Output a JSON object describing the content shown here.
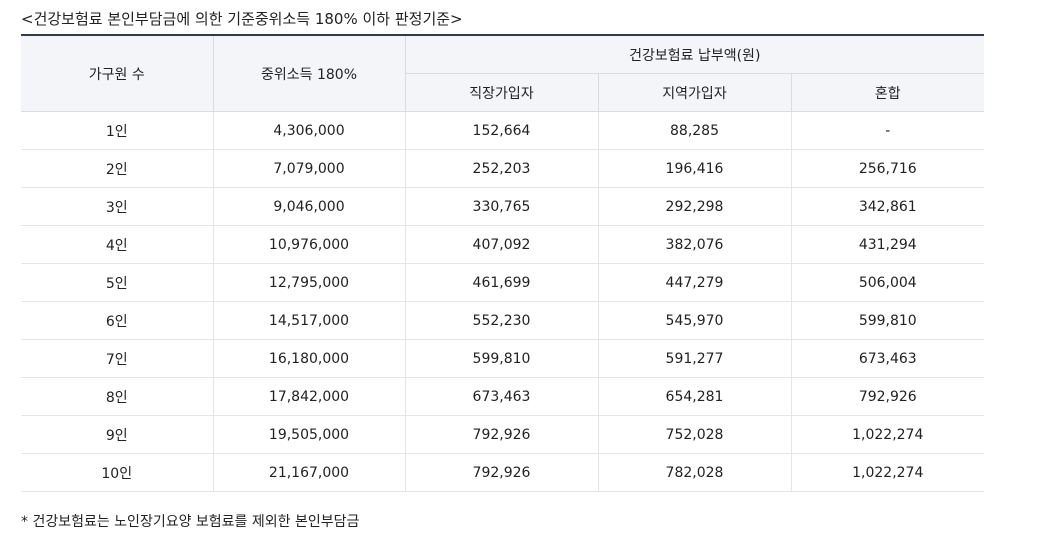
{
  "caption": "<건강보험료 본인부담금에 의한 기준중위소득 180% 이하 판정기준>",
  "table": {
    "header": {
      "household": "가구원 수",
      "median_income": "중위소득 180%",
      "premium_group": "건강보험료 납부액(원)",
      "employee": "직장가입자",
      "regional": "지역가입자",
      "mixed": "혼합"
    },
    "rows": [
      {
        "household": "1인",
        "income": "4,306,000",
        "employee": "152,664",
        "regional": "88,285",
        "mixed": "-"
      },
      {
        "household": "2인",
        "income": "7,079,000",
        "employee": "252,203",
        "regional": "196,416",
        "mixed": "256,716"
      },
      {
        "household": "3인",
        "income": "9,046,000",
        "employee": "330,765",
        "regional": "292,298",
        "mixed": "342,861"
      },
      {
        "household": "4인",
        "income": "10,976,000",
        "employee": "407,092",
        "regional": "382,076",
        "mixed": "431,294"
      },
      {
        "household": "5인",
        "income": "12,795,000",
        "employee": "461,699",
        "regional": "447,279",
        "mixed": "506,004"
      },
      {
        "household": "6인",
        "income": "14,517,000",
        "employee": "552,230",
        "regional": "545,970",
        "mixed": "599,810"
      },
      {
        "household": "7인",
        "income": "16,180,000",
        "employee": "599,810",
        "regional": "591,277",
        "mixed": "673,463"
      },
      {
        "household": "8인",
        "income": "17,842,000",
        "employee": "673,463",
        "regional": "654,281",
        "mixed": "792,926"
      },
      {
        "household": "9인",
        "income": "19,505,000",
        "employee": "792,926",
        "regional": "752,028",
        "mixed": "1,022,274"
      },
      {
        "household": "10인",
        "income": "21,167,000",
        "employee": "792,926",
        "regional": "782,028",
        "mixed": "1,022,274"
      }
    ]
  },
  "footnote": "* 건강보험료는 노인장기요양 보험료를 제외한 본인부담금",
  "colors": {
    "header_bg": "#f4f5f8",
    "top_rule": "#2f3a56",
    "border": "#d9dbe1"
  }
}
